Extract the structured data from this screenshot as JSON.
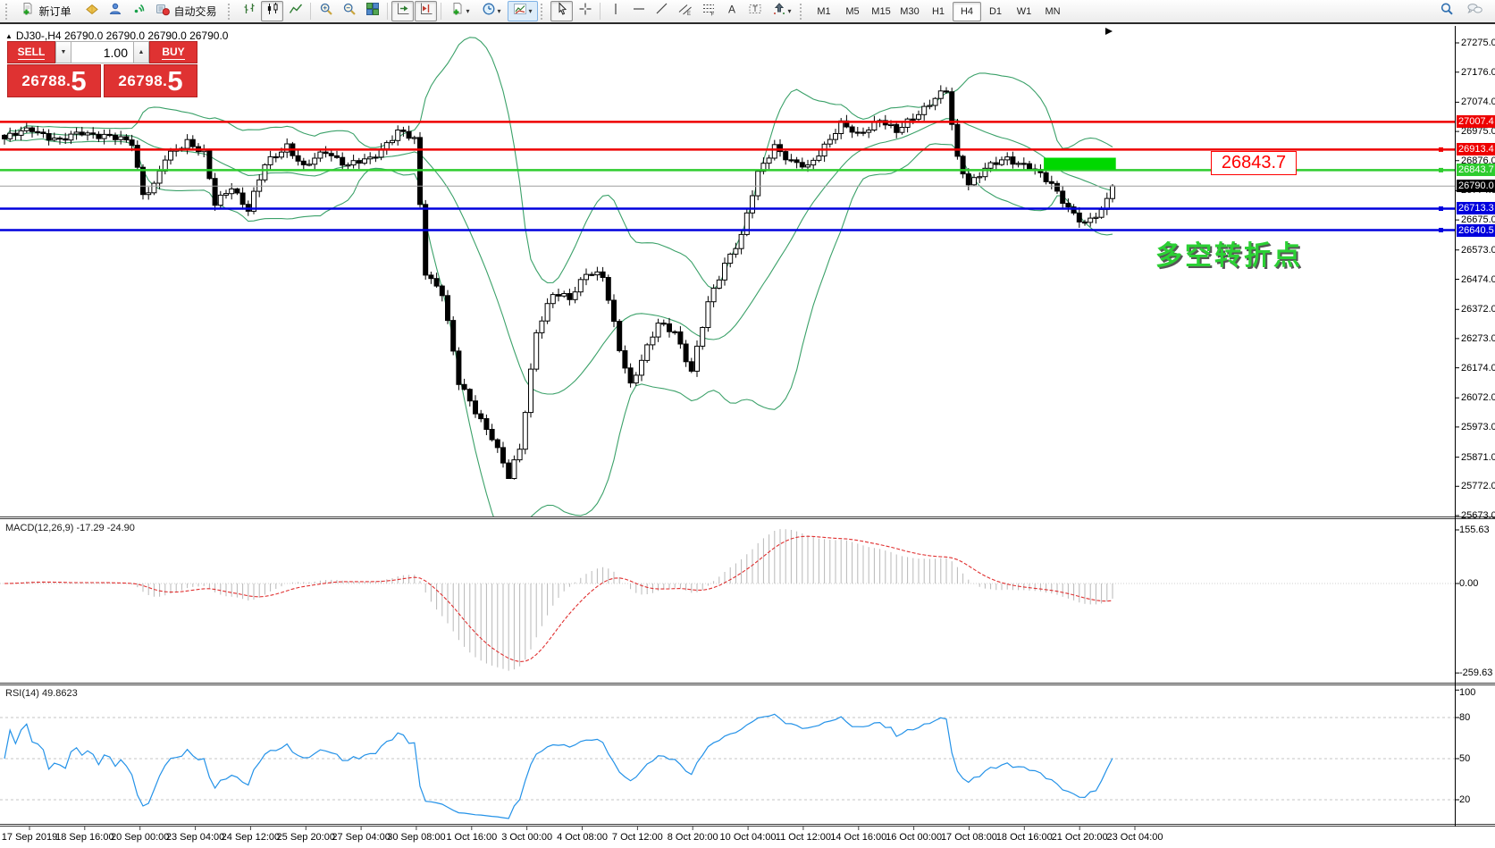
{
  "toolbar": {
    "new_order_label": "新订单",
    "auto_trading_label": "自动交易",
    "timeframes": [
      "M1",
      "M5",
      "M15",
      "M30",
      "H1",
      "H4",
      "D1",
      "W1",
      "MN"
    ],
    "active_timeframe": "H4",
    "accent_pressed_color": "#8f8f8f"
  },
  "chart_header": {
    "title": "DJ30-,H4  26790.0 26790.0 26790.0 26790.0",
    "symbol": "DJ30-",
    "period": "H4"
  },
  "trade_panel": {
    "sell_label": "SELL",
    "buy_label": "BUY",
    "lot_value": "1.00",
    "sell_price_main": "26788.",
    "sell_price_big": "5",
    "buy_price_main": "26798.",
    "buy_price_big": "5",
    "panel_color": "#df3232"
  },
  "price_axis": {
    "ticks": [
      "27275.0",
      "27176.0",
      "27074.0",
      "26975.0",
      "26876.0",
      "26774.0",
      "26675.0",
      "26573.0",
      "26474.0",
      "26372.0",
      "26273.0",
      "26174.0",
      "26072.0",
      "25973.0",
      "25871.0",
      "25772.0",
      "25673.0"
    ],
    "badges": [
      {
        "text": "27007.4",
        "color": "#ee0000"
      },
      {
        "text": "26913.4",
        "color": "#ee0000"
      },
      {
        "text": "26843.7",
        "color": "#2ecc2e"
      },
      {
        "text": "26790.0",
        "color": "#000000"
      },
      {
        "text": "26713.3",
        "color": "#0000dd"
      },
      {
        "text": "26640.5",
        "color": "#0000dd"
      }
    ]
  },
  "annotation": {
    "callout_value": "26843.7",
    "turning_point_text": "多空转折点"
  },
  "macd_panel": {
    "label": "MACD(12,26,9) -17.29 -24.90",
    "scale": [
      "155.63",
      "0.00",
      "-259.63"
    ]
  },
  "rsi_panel": {
    "label": "RSI(14) 49.8623",
    "scale": [
      "100",
      "80",
      "50",
      "20"
    ]
  },
  "time_axis": [
    "17 Sep 2019",
    "18 Sep 16:00",
    "20 Sep 00:00",
    "23 Sep 04:00",
    "24 Sep 12:00",
    "25 Sep 20:00",
    "27 Sep 04:00",
    "30 Sep 08:00",
    "1 Oct 16:00",
    "3 Oct 00:00",
    "4 Oct 08:00",
    "7 Oct 12:00",
    "8 Oct 20:00",
    "10 Oct 04:00",
    "11 Oct 12:00",
    "14 Oct 16:00",
    "16 Oct 00:00",
    "17 Oct 08:00",
    "18 Oct 16:00",
    "21 Oct 20:00",
    "23 Oct 04:00"
  ],
  "chart_data": {
    "type": "candlestick",
    "symbol": "DJ30-",
    "timeframe": "H4",
    "ylim": [
      25673.0,
      27275.0
    ],
    "bar_count": 201,
    "last_close": 26790.0,
    "close_path_anchors": [
      [
        0,
        26950
      ],
      [
        5,
        26985
      ],
      [
        10,
        26940
      ],
      [
        14,
        26975
      ],
      [
        20,
        26950
      ],
      [
        23,
        26940
      ],
      [
        25,
        26765
      ],
      [
        27,
        26790
      ],
      [
        29,
        26880
      ],
      [
        33,
        26945
      ],
      [
        36,
        26900
      ],
      [
        38,
        26725
      ],
      [
        41,
        26790
      ],
      [
        44,
        26710
      ],
      [
        47,
        26860
      ],
      [
        51,
        26930
      ],
      [
        54,
        26850
      ],
      [
        58,
        26910
      ],
      [
        62,
        26860
      ],
      [
        66,
        26880
      ],
      [
        71,
        26975
      ],
      [
        74,
        26945
      ],
      [
        76,
        26500
      ],
      [
        79,
        26430
      ],
      [
        82,
        26120
      ],
      [
        85,
        26030
      ],
      [
        88,
        25940
      ],
      [
        91,
        25800
      ],
      [
        93,
        25900
      ],
      [
        96,
        26300
      ],
      [
        99,
        26420
      ],
      [
        102,
        26410
      ],
      [
        105,
        26500
      ],
      [
        108,
        26480
      ],
      [
        111,
        26240
      ],
      [
        113,
        26120
      ],
      [
        115,
        26200
      ],
      [
        118,
        26320
      ],
      [
        121,
        26300
      ],
      [
        124,
        26160
      ],
      [
        127,
        26390
      ],
      [
        130,
        26530
      ],
      [
        133,
        26620
      ],
      [
        136,
        26830
      ],
      [
        139,
        26930
      ],
      [
        142,
        26870
      ],
      [
        145,
        26850
      ],
      [
        148,
        26930
      ],
      [
        151,
        27000
      ],
      [
        154,
        26960
      ],
      [
        158,
        27020
      ],
      [
        161,
        26970
      ],
      [
        165,
        27040
      ],
      [
        168,
        27090
      ],
      [
        170,
        27110
      ],
      [
        172,
        26880
      ],
      [
        174,
        26800
      ],
      [
        177,
        26850
      ],
      [
        181,
        26880
      ],
      [
        185,
        26860
      ],
      [
        189,
        26790
      ],
      [
        192,
        26720
      ],
      [
        195,
        26660
      ],
      [
        198,
        26700
      ],
      [
        200,
        26790
      ]
    ],
    "low_spike": {
      "index": 91,
      "low": 25805
    },
    "bollinger": {
      "period": 20,
      "deviation": 2,
      "color": "#3ba169"
    },
    "horizontal_lines": [
      {
        "price": 27007.4,
        "color": "#ee0000",
        "width": 2.5,
        "marker": false
      },
      {
        "price": 26913.4,
        "color": "#ee0000",
        "width": 2.5,
        "marker": true
      },
      {
        "price": 26843.7,
        "color": "#2ecc2e",
        "width": 2.5,
        "marker": true
      },
      {
        "price": 26790.0,
        "color": "#9e9e9e",
        "width": 1,
        "marker": false
      },
      {
        "price": 26713.3,
        "color": "#0000dd",
        "width": 2.5,
        "marker": true
      },
      {
        "price": 26640.5,
        "color": "#0000dd",
        "width": 2.5,
        "marker": true
      }
    ],
    "green_zone": {
      "bar_start": 188,
      "bar_end": 201,
      "price_top": 26886,
      "price_bottom": 26846,
      "color": "#00d800"
    },
    "macd": {
      "fast": 12,
      "slow": 26,
      "signal": 9,
      "current_macd": -17.29,
      "current_signal": -24.9,
      "scale_values": [
        155.63,
        0.0,
        -259.63
      ],
      "histogram_color": "#b8b8b8",
      "signal_color": "#e03030"
    },
    "rsi": {
      "period": 14,
      "current": 49.8623,
      "levels": [
        80,
        50,
        20
      ],
      "line_color": "#2492e8",
      "scale_values": [
        100,
        80,
        50,
        20
      ]
    },
    "price_tick_values": [
      27275.0,
      27176.0,
      27074.0,
      26975.0,
      26876.0,
      26774.0,
      26675.0,
      26573.0,
      26474.0,
      26372.0,
      26273.0,
      26174.0,
      26072.0,
      25973.0,
      25871.0,
      25772.0,
      25673.0
    ],
    "badge_values": [
      27007.4,
      26913.4,
      26843.7,
      26790.0,
      26713.3,
      26640.5
    ],
    "time_label_start_x": 33,
    "time_label_step_x": 61.85
  }
}
